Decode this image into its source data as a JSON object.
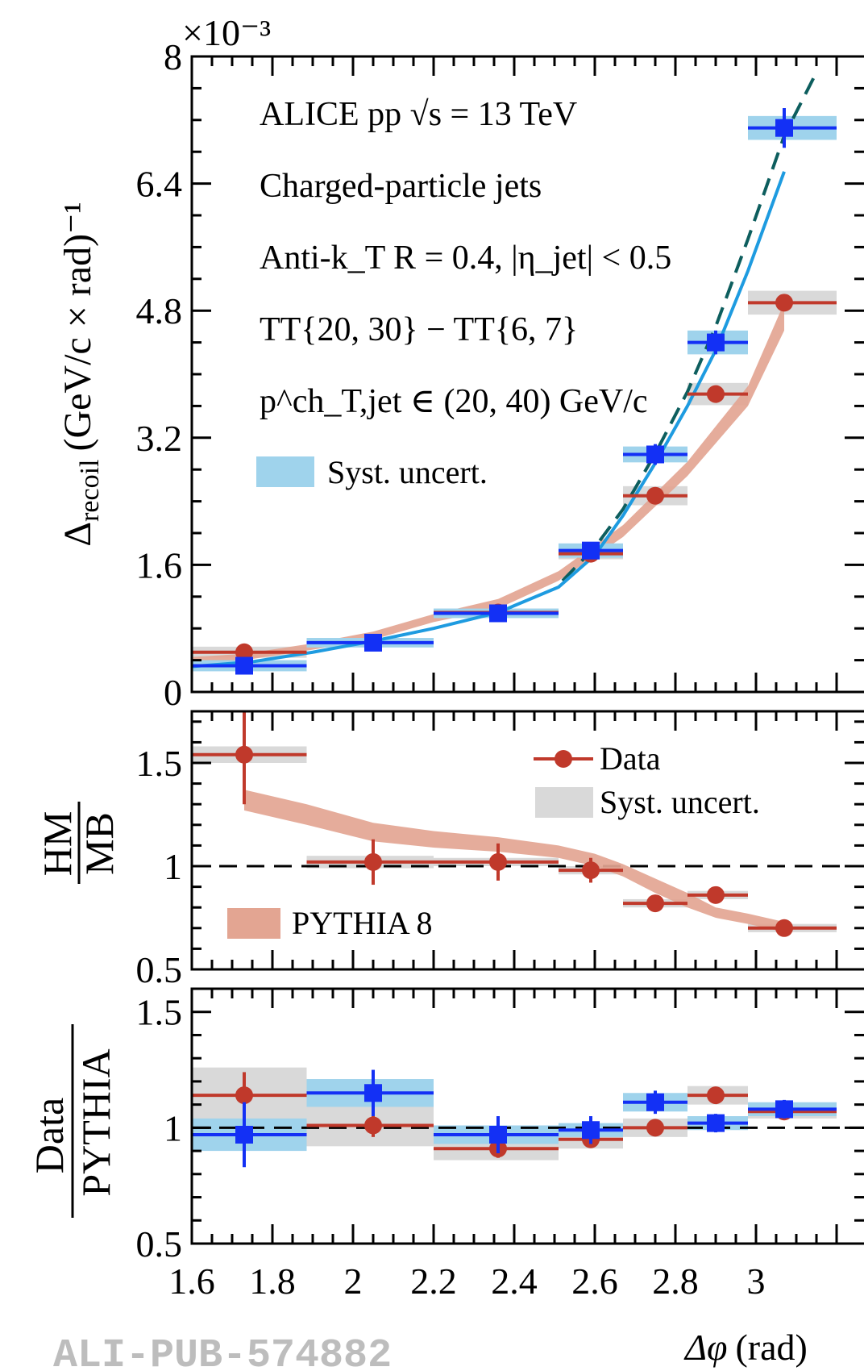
{
  "colors": {
    "data_blue": "#1330f5",
    "data_red": "#c0392b",
    "syst_blue": "#9fd3ec",
    "syst_grey": "#d9d9d9",
    "pythia_band": "#e3a592",
    "curve_blue": "#1e9be0",
    "curve_teal": "#0d5e5e"
  },
  "watermark": "ALI-PUB-574882",
  "chart_data": [
    {
      "type": "scatter",
      "panel": "top",
      "y_multiplier": "×10⁻³",
      "ylabel_main": "Δ",
      "ylabel_sub": "recoil",
      "ylabel_unit": "(GeV/c × rad)⁻¹",
      "xlim": [
        1.6,
        3.2
      ],
      "ylim": [
        0,
        8
      ],
      "yticks": [
        "0",
        "1.6",
        "3.2",
        "4.8",
        "6.4",
        "8"
      ],
      "annotations": [
        {
          "text": "ALICE pp √s = 13 TeV"
        },
        {
          "text": "Charged-particle jets"
        },
        {
          "text": "Anti-k_T R = 0.4, |η_jet| < 0.5"
        },
        {
          "text": "TT{20, 30} − TT{6, 7}"
        },
        {
          "text": "p^ch_T,jet ∈ (20, 40) GeV/c"
        }
      ],
      "legend": [
        {
          "label": "Syst. uncert."
        }
      ],
      "series": [
        {
          "name": "blue",
          "points": [
            {
              "x": 1.73,
              "xlo": 1.6,
              "xhi": 1.885,
              "y": 0.33,
              "err": 0.08,
              "sys": 0.07
            },
            {
              "x": 2.05,
              "xlo": 1.885,
              "xhi": 2.2,
              "y": 0.62,
              "err": 0.06,
              "sys": 0.06
            },
            {
              "x": 2.36,
              "xlo": 2.2,
              "xhi": 2.51,
              "y": 0.99,
              "err": 0.05,
              "sys": 0.06
            },
            {
              "x": 2.59,
              "xlo": 2.51,
              "xhi": 2.67,
              "y": 1.78,
              "err": 0.1,
              "sys": 0.09
            },
            {
              "x": 2.75,
              "xlo": 2.67,
              "xhi": 2.83,
              "y": 2.99,
              "err": 0.13,
              "sys": 0.1
            },
            {
              "x": 2.9,
              "xlo": 2.83,
              "xhi": 2.98,
              "y": 4.4,
              "err": 0.15,
              "sys": 0.15
            },
            {
              "x": 3.07,
              "xlo": 2.98,
              "xhi": 3.2,
              "y": 7.1,
              "err": 0.25,
              "sys": 0.15
            }
          ]
        },
        {
          "name": "red",
          "points": [
            {
              "x": 1.73,
              "xlo": 1.6,
              "xhi": 1.885,
              "y": 0.5,
              "err": 0.04,
              "sys": 0.07
            },
            {
              "x": 2.36,
              "xlo": 2.2,
              "xhi": 2.51,
              "y": 1.0,
              "err": 0.03,
              "sys": 0.05
            },
            {
              "x": 2.59,
              "xlo": 2.51,
              "xhi": 2.67,
              "y": 1.74,
              "err": 0.05,
              "sys": 0.07
            },
            {
              "x": 2.75,
              "xlo": 2.67,
              "xhi": 2.83,
              "y": 2.47,
              "err": 0.06,
              "sys": 0.12
            },
            {
              "x": 2.9,
              "xlo": 2.83,
              "xhi": 2.98,
              "y": 3.75,
              "err": 0.08,
              "sys": 0.14
            },
            {
              "x": 3.07,
              "xlo": 2.98,
              "xhi": 3.2,
              "y": 4.9,
              "err": 0.1,
              "sys": 0.15
            }
          ]
        }
      ],
      "pythia_band": [
        {
          "x": 1.6,
          "lo": 0.36,
          "hi": 0.44
        },
        {
          "x": 1.73,
          "lo": 0.4,
          "hi": 0.48
        },
        {
          "x": 1.885,
          "lo": 0.52,
          "hi": 0.6
        },
        {
          "x": 2.05,
          "lo": 0.66,
          "hi": 0.76
        },
        {
          "x": 2.2,
          "lo": 0.88,
          "hi": 0.98
        },
        {
          "x": 2.36,
          "lo": 1.05,
          "hi": 1.17
        },
        {
          "x": 2.51,
          "lo": 1.4,
          "hi": 1.52
        },
        {
          "x": 2.67,
          "lo": 1.95,
          "hi": 2.1
        },
        {
          "x": 2.83,
          "lo": 2.72,
          "hi": 2.9
        },
        {
          "x": 2.98,
          "lo": 3.6,
          "hi": 3.85
        },
        {
          "x": 3.07,
          "lo": 4.55,
          "hi": 4.9
        }
      ],
      "curve_blue": [
        {
          "x": 1.6,
          "y": 0.32
        },
        {
          "x": 1.75,
          "y": 0.38
        },
        {
          "x": 1.9,
          "y": 0.5
        },
        {
          "x": 2.05,
          "y": 0.64
        },
        {
          "x": 2.2,
          "y": 0.8
        },
        {
          "x": 2.36,
          "y": 1.0
        },
        {
          "x": 2.51,
          "y": 1.32
        },
        {
          "x": 2.6,
          "y": 1.72
        },
        {
          "x": 2.67,
          "y": 2.22
        },
        {
          "x": 2.75,
          "y": 2.88
        },
        {
          "x": 2.83,
          "y": 3.6
        },
        {
          "x": 2.9,
          "y": 4.3
        },
        {
          "x": 2.98,
          "y": 5.3
        },
        {
          "x": 3.07,
          "y": 6.55
        }
      ],
      "curve_teal": [
        {
          "x": 2.52,
          "y": 1.4
        },
        {
          "x": 2.6,
          "y": 1.82
        },
        {
          "x": 2.67,
          "y": 2.3
        },
        {
          "x": 2.75,
          "y": 3.0
        },
        {
          "x": 2.83,
          "y": 3.78
        },
        {
          "x": 2.9,
          "y": 4.6
        },
        {
          "x": 2.98,
          "y": 5.7
        },
        {
          "x": 3.07,
          "y": 7.0
        },
        {
          "x": 3.15,
          "y": 7.8
        }
      ]
    },
    {
      "type": "scatter",
      "panel": "middle",
      "ylabel_num": "HM",
      "ylabel_den": "MB",
      "xlim": [
        1.6,
        3.2
      ],
      "ylim": [
        0.5,
        1.75
      ],
      "yticks": [
        "0.5",
        "1",
        "1.5"
      ],
      "reference_line": 1,
      "legend": [
        {
          "label": "Data"
        },
        {
          "label": "Syst. uncert."
        },
        {
          "label": "PYTHIA 8"
        }
      ],
      "points": [
        {
          "x": 1.73,
          "xlo": 1.6,
          "xhi": 1.885,
          "y": 1.54,
          "err": 0.24,
          "sys": 0.04
        },
        {
          "x": 2.05,
          "xlo": 1.885,
          "xhi": 2.2,
          "y": 1.02,
          "err": 0.11,
          "sys": 0.03
        },
        {
          "x": 2.36,
          "xlo": 2.2,
          "xhi": 2.51,
          "y": 1.02,
          "err": 0.09,
          "sys": 0.02
        },
        {
          "x": 2.59,
          "xlo": 2.51,
          "xhi": 2.67,
          "y": 0.98,
          "err": 0.06,
          "sys": 0.02
        },
        {
          "x": 2.75,
          "xlo": 2.67,
          "xhi": 2.83,
          "y": 0.82,
          "err": 0.04,
          "sys": 0.02
        },
        {
          "x": 2.9,
          "xlo": 2.83,
          "xhi": 2.98,
          "y": 0.86,
          "err": 0.03,
          "sys": 0.02
        },
        {
          "x": 3.07,
          "xlo": 2.98,
          "xhi": 3.2,
          "y": 0.7,
          "err": 0.02,
          "sys": 0.02
        }
      ],
      "pythia_band": [
        {
          "x": 1.73,
          "lo": 1.27,
          "hi": 1.37
        },
        {
          "x": 1.885,
          "lo": 1.2,
          "hi": 1.3
        },
        {
          "x": 2.05,
          "lo": 1.12,
          "hi": 1.21
        },
        {
          "x": 2.2,
          "lo": 1.09,
          "hi": 1.17
        },
        {
          "x": 2.36,
          "lo": 1.07,
          "hi": 1.14
        },
        {
          "x": 2.51,
          "lo": 1.04,
          "hi": 1.1
        },
        {
          "x": 2.6,
          "lo": 1.0,
          "hi": 1.06
        },
        {
          "x": 2.67,
          "lo": 0.95,
          "hi": 1.01
        },
        {
          "x": 2.75,
          "lo": 0.87,
          "hi": 0.94
        },
        {
          "x": 2.83,
          "lo": 0.8,
          "hi": 0.87
        },
        {
          "x": 2.9,
          "lo": 0.75,
          "hi": 0.8
        },
        {
          "x": 2.98,
          "lo": 0.72,
          "hi": 0.77
        },
        {
          "x": 3.07,
          "lo": 0.68,
          "hi": 0.73
        }
      ]
    },
    {
      "type": "scatter",
      "panel": "bottom",
      "ylabel_num": "Data",
      "ylabel_den": "PYTHIA",
      "xlabel_main": "Δφ",
      "xlabel_unit": "(rad)",
      "xlim": [
        1.6,
        3.2
      ],
      "ylim": [
        0.5,
        1.6
      ],
      "xticks": [
        "1.6",
        "1.8",
        "2",
        "2.2",
        "2.4",
        "2.6",
        "2.8",
        "3"
      ],
      "yticks": [
        "0.5",
        "1",
        "1.5"
      ],
      "reference_line": 1,
      "series": [
        {
          "name": "blue",
          "points": [
            {
              "x": 1.73,
              "xlo": 1.6,
              "xhi": 1.885,
              "y": 0.97,
              "err": 0.14,
              "sys": 0.07
            },
            {
              "x": 2.05,
              "xlo": 1.885,
              "xhi": 2.2,
              "y": 1.15,
              "err": 0.1,
              "sys": 0.06
            },
            {
              "x": 2.36,
              "xlo": 2.2,
              "xhi": 2.51,
              "y": 0.97,
              "err": 0.08,
              "sys": 0.04
            },
            {
              "x": 2.59,
              "xlo": 2.51,
              "xhi": 2.67,
              "y": 0.99,
              "err": 0.06,
              "sys": 0.03
            },
            {
              "x": 2.75,
              "xlo": 2.67,
              "xhi": 2.83,
              "y": 1.11,
              "err": 0.05,
              "sys": 0.04
            },
            {
              "x": 2.9,
              "xlo": 2.83,
              "xhi": 2.98,
              "y": 1.02,
              "err": 0.04,
              "sys": 0.03
            },
            {
              "x": 3.07,
              "xlo": 2.98,
              "xhi": 3.2,
              "y": 1.08,
              "err": 0.04,
              "sys": 0.03
            }
          ]
        },
        {
          "name": "red",
          "points": [
            {
              "x": 1.73,
              "xlo": 1.6,
              "xhi": 1.885,
              "y": 1.14,
              "err": 0.1,
              "sys": 0.12
            },
            {
              "x": 2.05,
              "xlo": 1.885,
              "xhi": 2.2,
              "y": 1.01,
              "err": 0.05,
              "sys": 0.09
            },
            {
              "x": 2.36,
              "xlo": 2.2,
              "xhi": 2.51,
              "y": 0.91,
              "err": 0.04,
              "sys": 0.05
            },
            {
              "x": 2.59,
              "xlo": 2.51,
              "xhi": 2.67,
              "y": 0.95,
              "err": 0.03,
              "sys": 0.04
            },
            {
              "x": 2.75,
              "xlo": 2.67,
              "xhi": 2.83,
              "y": 1.0,
              "err": 0.03,
              "sys": 0.04
            },
            {
              "x": 2.9,
              "xlo": 2.83,
              "xhi": 2.98,
              "y": 1.14,
              "err": 0.03,
              "sys": 0.04
            },
            {
              "x": 3.07,
              "xlo": 2.98,
              "xhi": 3.2,
              "y": 1.07,
              "err": 0.02,
              "sys": 0.03
            }
          ]
        }
      ]
    }
  ]
}
